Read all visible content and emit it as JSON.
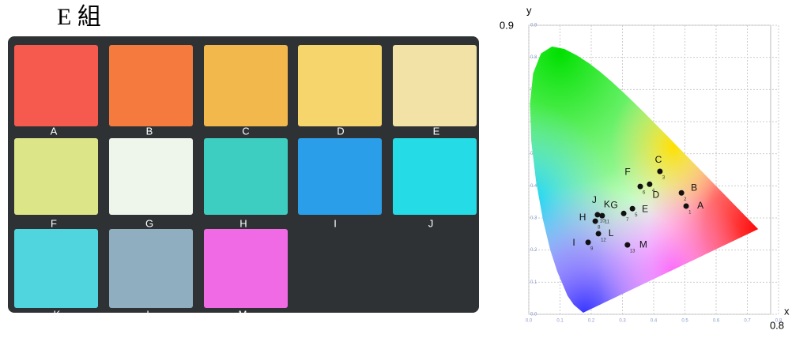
{
  "header": {
    "title": "E 組"
  },
  "swatches": [
    {
      "label": "A",
      "color": "#f65a4f"
    },
    {
      "label": "B",
      "color": "#f47b3d"
    },
    {
      "label": "C",
      "color": "#f2b84c"
    },
    {
      "label": "D",
      "color": "#f5d56c"
    },
    {
      "label": "E",
      "color": "#f3e2a6"
    },
    {
      "label": "F",
      "color": "#dde589"
    },
    {
      "label": "G",
      "color": "#eef5ea"
    },
    {
      "label": "H",
      "color": "#3dcdc1"
    },
    {
      "label": "I",
      "color": "#2a9ee8"
    },
    {
      "label": "J",
      "color": "#24dbe6"
    },
    {
      "label": "K",
      "color": "#50d5df"
    },
    {
      "label": "L",
      "color": "#8fafc1"
    },
    {
      "label": "M",
      "color": "#f06ae6"
    }
  ],
  "chart_data": {
    "type": "scatter",
    "x_label": "x",
    "y_label": "y",
    "labels": [
      "A",
      "B",
      "C",
      "D",
      "E",
      "F",
      "G",
      "H",
      "I",
      "J",
      "K",
      "L",
      "M"
    ],
    "numbers": [
      "1",
      "2",
      "3",
      "4",
      "5",
      "6",
      "7",
      "8",
      "9",
      "10",
      "11",
      "12",
      "13"
    ],
    "x": [
      0.504,
      0.489,
      0.42,
      0.387,
      0.332,
      0.357,
      0.304,
      0.213,
      0.19,
      0.22,
      0.235,
      0.223,
      0.316
    ],
    "y": [
      0.337,
      0.378,
      0.445,
      0.405,
      0.329,
      0.398,
      0.314,
      0.29,
      0.224,
      0.31,
      0.307,
      0.251,
      0.216
    ],
    "color": "#111111",
    "xlim": [
      0,
      0.8
    ],
    "ylim": [
      0,
      0.9
    ],
    "xticks": [
      {
        "value": 0,
        "label": "0.0"
      },
      0.1,
      0.2,
      0.3,
      0.4,
      0.5,
      0.6,
      0.7,
      0.8
    ],
    "yticks": [
      {
        "value": 0,
        "label": "0.0"
      },
      0.1,
      0.2,
      0.3,
      0.4,
      0.5,
      0.6,
      0.7,
      0.8,
      0.9
    ],
    "grid": true
  }
}
